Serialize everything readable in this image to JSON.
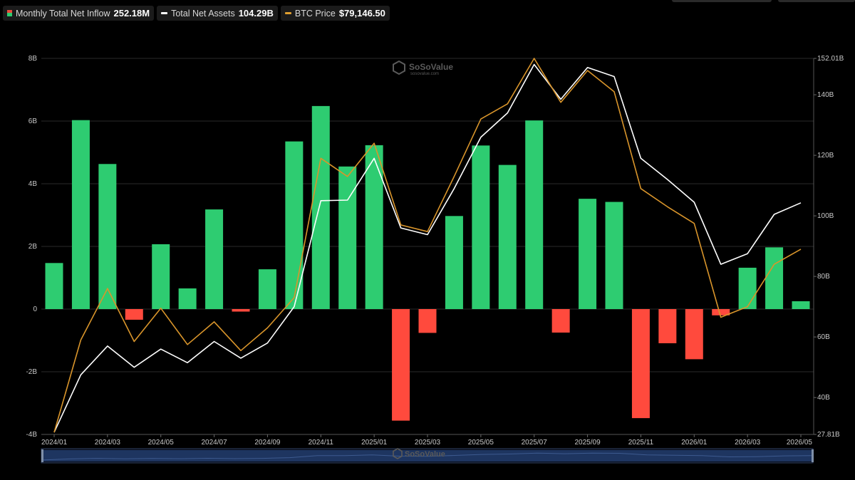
{
  "legend": [
    {
      "label": "Monthly Total Net Inflow",
      "value": "252.18M",
      "icon": "bar-swatch"
    },
    {
      "label": "Total Net Assets",
      "value": "104.29B",
      "color": "#ffffff"
    },
    {
      "label": "BTC Price",
      "value": "$79,146.50",
      "color": "#e0a030"
    }
  ],
  "watermark": {
    "brand": "SoSoValue",
    "url": "sosovalue.com"
  },
  "colors": {
    "positive": "#2ecc71",
    "negative": "#ff4a3d",
    "assets": "#ffffff",
    "btc": "#d9952b",
    "grid": "#2a2a2a",
    "navigator": "#1e3560"
  },
  "chart_data": {
    "type": "bar",
    "categories": [
      "2024/01",
      "2024/02",
      "2024/03",
      "2024/04",
      "2024/05",
      "2024/06",
      "2024/07",
      "2024/08",
      "2024/09",
      "2024/10",
      "2024/11",
      "2024/12",
      "2025/01",
      "2025/02",
      "2025/03",
      "2025/04",
      "2025/05",
      "2025/06",
      "2025/07",
      "2025/08",
      "2025/09",
      "2025/10",
      "2025/11",
      "2025/12",
      "2026/01",
      "2026/02",
      "2026/03",
      "2026/04",
      "2026/05"
    ],
    "x_tick_labels": [
      "2024/01",
      "2024/03",
      "2024/05",
      "2024/07",
      "2024/09",
      "2024/11",
      "2025/01",
      "2025/03",
      "2025/05",
      "2025/07",
      "2025/09",
      "2025/11",
      "2026/01",
      "2026/03",
      "2026/05"
    ],
    "left_axis": {
      "ticks": [
        "8B",
        "6B",
        "4B",
        "2B",
        "0",
        "-2B",
        "-4B"
      ],
      "ylim": [
        -4,
        8
      ],
      "unit": "B"
    },
    "right_axis": {
      "ticks": [
        "152.01B",
        "140B",
        "120B",
        "100B",
        "80B",
        "60B",
        "40B",
        "27.81B"
      ],
      "ylim": [
        27.81,
        152.01
      ],
      "unit": "B"
    },
    "grid": true,
    "legend_position": "top-left",
    "series": [
      {
        "name": "Monthly Total Net Inflow",
        "axis": "left",
        "kind": "bar",
        "values": [
          1.47,
          6.03,
          4.63,
          -0.34,
          2.07,
          0.66,
          3.18,
          -0.08,
          1.27,
          5.35,
          6.48,
          4.55,
          5.23,
          -3.56,
          -0.76,
          2.97,
          5.22,
          4.6,
          6.02,
          -0.75,
          3.52,
          3.42,
          -3.48,
          -1.09,
          -1.6,
          -0.2,
          1.32,
          1.97,
          0.25
        ]
      },
      {
        "name": "Total Net Assets",
        "axis": "right",
        "kind": "line",
        "values": [
          28.5,
          47.5,
          57.0,
          50.0,
          56.0,
          51.5,
          58.5,
          53.0,
          58.0,
          70.0,
          105.0,
          105.2,
          119.0,
          96.0,
          93.8,
          109.0,
          126.0,
          134.0,
          150.0,
          138.5,
          149.0,
          146.0,
          119.0,
          112.0,
          104.5,
          84.0,
          87.5,
          100.5,
          104.3
        ]
      },
      {
        "name": "BTC Price",
        "axis": "right",
        "kind": "line",
        "values": [
          28.5,
          59.0,
          76.0,
          58.5,
          69.5,
          57.5,
          65.0,
          55.5,
          63.0,
          73.0,
          119.0,
          113.0,
          124.0,
          97.0,
          94.8,
          113.0,
          132.0,
          137.0,
          152.0,
          137.5,
          148.0,
          141.0,
          109.0,
          103.0,
          97.5,
          66.5,
          70.0,
          84.0,
          89.0
        ]
      }
    ]
  }
}
